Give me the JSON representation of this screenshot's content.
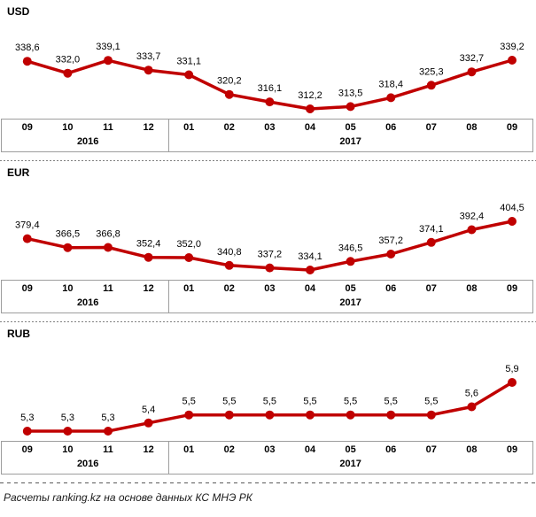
{
  "footer": {
    "text": "Расчеты ranking.kz  на основе данных  КС МНЭ РК"
  },
  "axis": {
    "months": [
      "09",
      "10",
      "11",
      "12",
      "01",
      "02",
      "03",
      "04",
      "05",
      "06",
      "07",
      "08",
      "09"
    ],
    "year_groups": [
      {
        "label": "2016",
        "cols": 4
      },
      {
        "label": "2017",
        "cols": 9
      }
    ]
  },
  "colors": {
    "line": "#C00000",
    "marker": "#C00000",
    "data_label": "#000000",
    "axis_border": "#9d9d9d",
    "separator_fine": "#7f7f7f",
    "separator_long": "#595959"
  },
  "chart_data": [
    {
      "type": "line",
      "title": "USD",
      "categories": [
        "09.2016",
        "10.2016",
        "11.2016",
        "12.2016",
        "01.2017",
        "02.2017",
        "03.2017",
        "04.2017",
        "05.2017",
        "06.2017",
        "07.2017",
        "08.2017",
        "09.2017"
      ],
      "values": [
        338.6,
        332.0,
        339.1,
        333.7,
        331.1,
        320.2,
        316.1,
        312.2,
        313.5,
        318.4,
        325.3,
        332.7,
        339.2
      ],
      "data_labels": [
        "338,6",
        "332,0",
        "339,1",
        "333,7",
        "331,1",
        "320,2",
        "316,1",
        "312,2",
        "313,5",
        "318,4",
        "325,3",
        "332,7",
        "339,2"
      ],
      "xlabel": "",
      "ylabel": "",
      "grid": false,
      "legend": "none"
    },
    {
      "type": "line",
      "title": "EUR",
      "categories": [
        "09.2016",
        "10.2016",
        "11.2016",
        "12.2016",
        "01.2017",
        "02.2017",
        "03.2017",
        "04.2017",
        "05.2017",
        "06.2017",
        "07.2017",
        "08.2017",
        "09.2017"
      ],
      "values": [
        379.4,
        366.5,
        366.8,
        352.4,
        352.0,
        340.8,
        337.2,
        334.1,
        346.5,
        357.2,
        374.1,
        392.4,
        404.5
      ],
      "data_labels": [
        "379,4",
        "366,5",
        "366,8",
        "352,4",
        "352,0",
        "340,8",
        "337,2",
        "334,1",
        "346,5",
        "357,2",
        "374,1",
        "392,4",
        "404,5"
      ],
      "xlabel": "",
      "ylabel": "",
      "grid": false,
      "legend": "none"
    },
    {
      "type": "line",
      "title": "RUB",
      "categories": [
        "09.2016",
        "10.2016",
        "11.2016",
        "12.2016",
        "01.2017",
        "02.2017",
        "03.2017",
        "04.2017",
        "05.2017",
        "06.2017",
        "07.2017",
        "08.2017",
        "09.2017"
      ],
      "values": [
        5.3,
        5.3,
        5.3,
        5.4,
        5.5,
        5.5,
        5.5,
        5.5,
        5.5,
        5.5,
        5.5,
        5.6,
        5.9
      ],
      "data_labels": [
        "5,3",
        "5,3",
        "5,3",
        "5,4",
        "5,5",
        "5,5",
        "5,5",
        "5,5",
        "5,5",
        "5,5",
        "5,5",
        "5,6",
        "5,9"
      ],
      "xlabel": "",
      "ylabel": "",
      "grid": false,
      "legend": "none"
    }
  ]
}
